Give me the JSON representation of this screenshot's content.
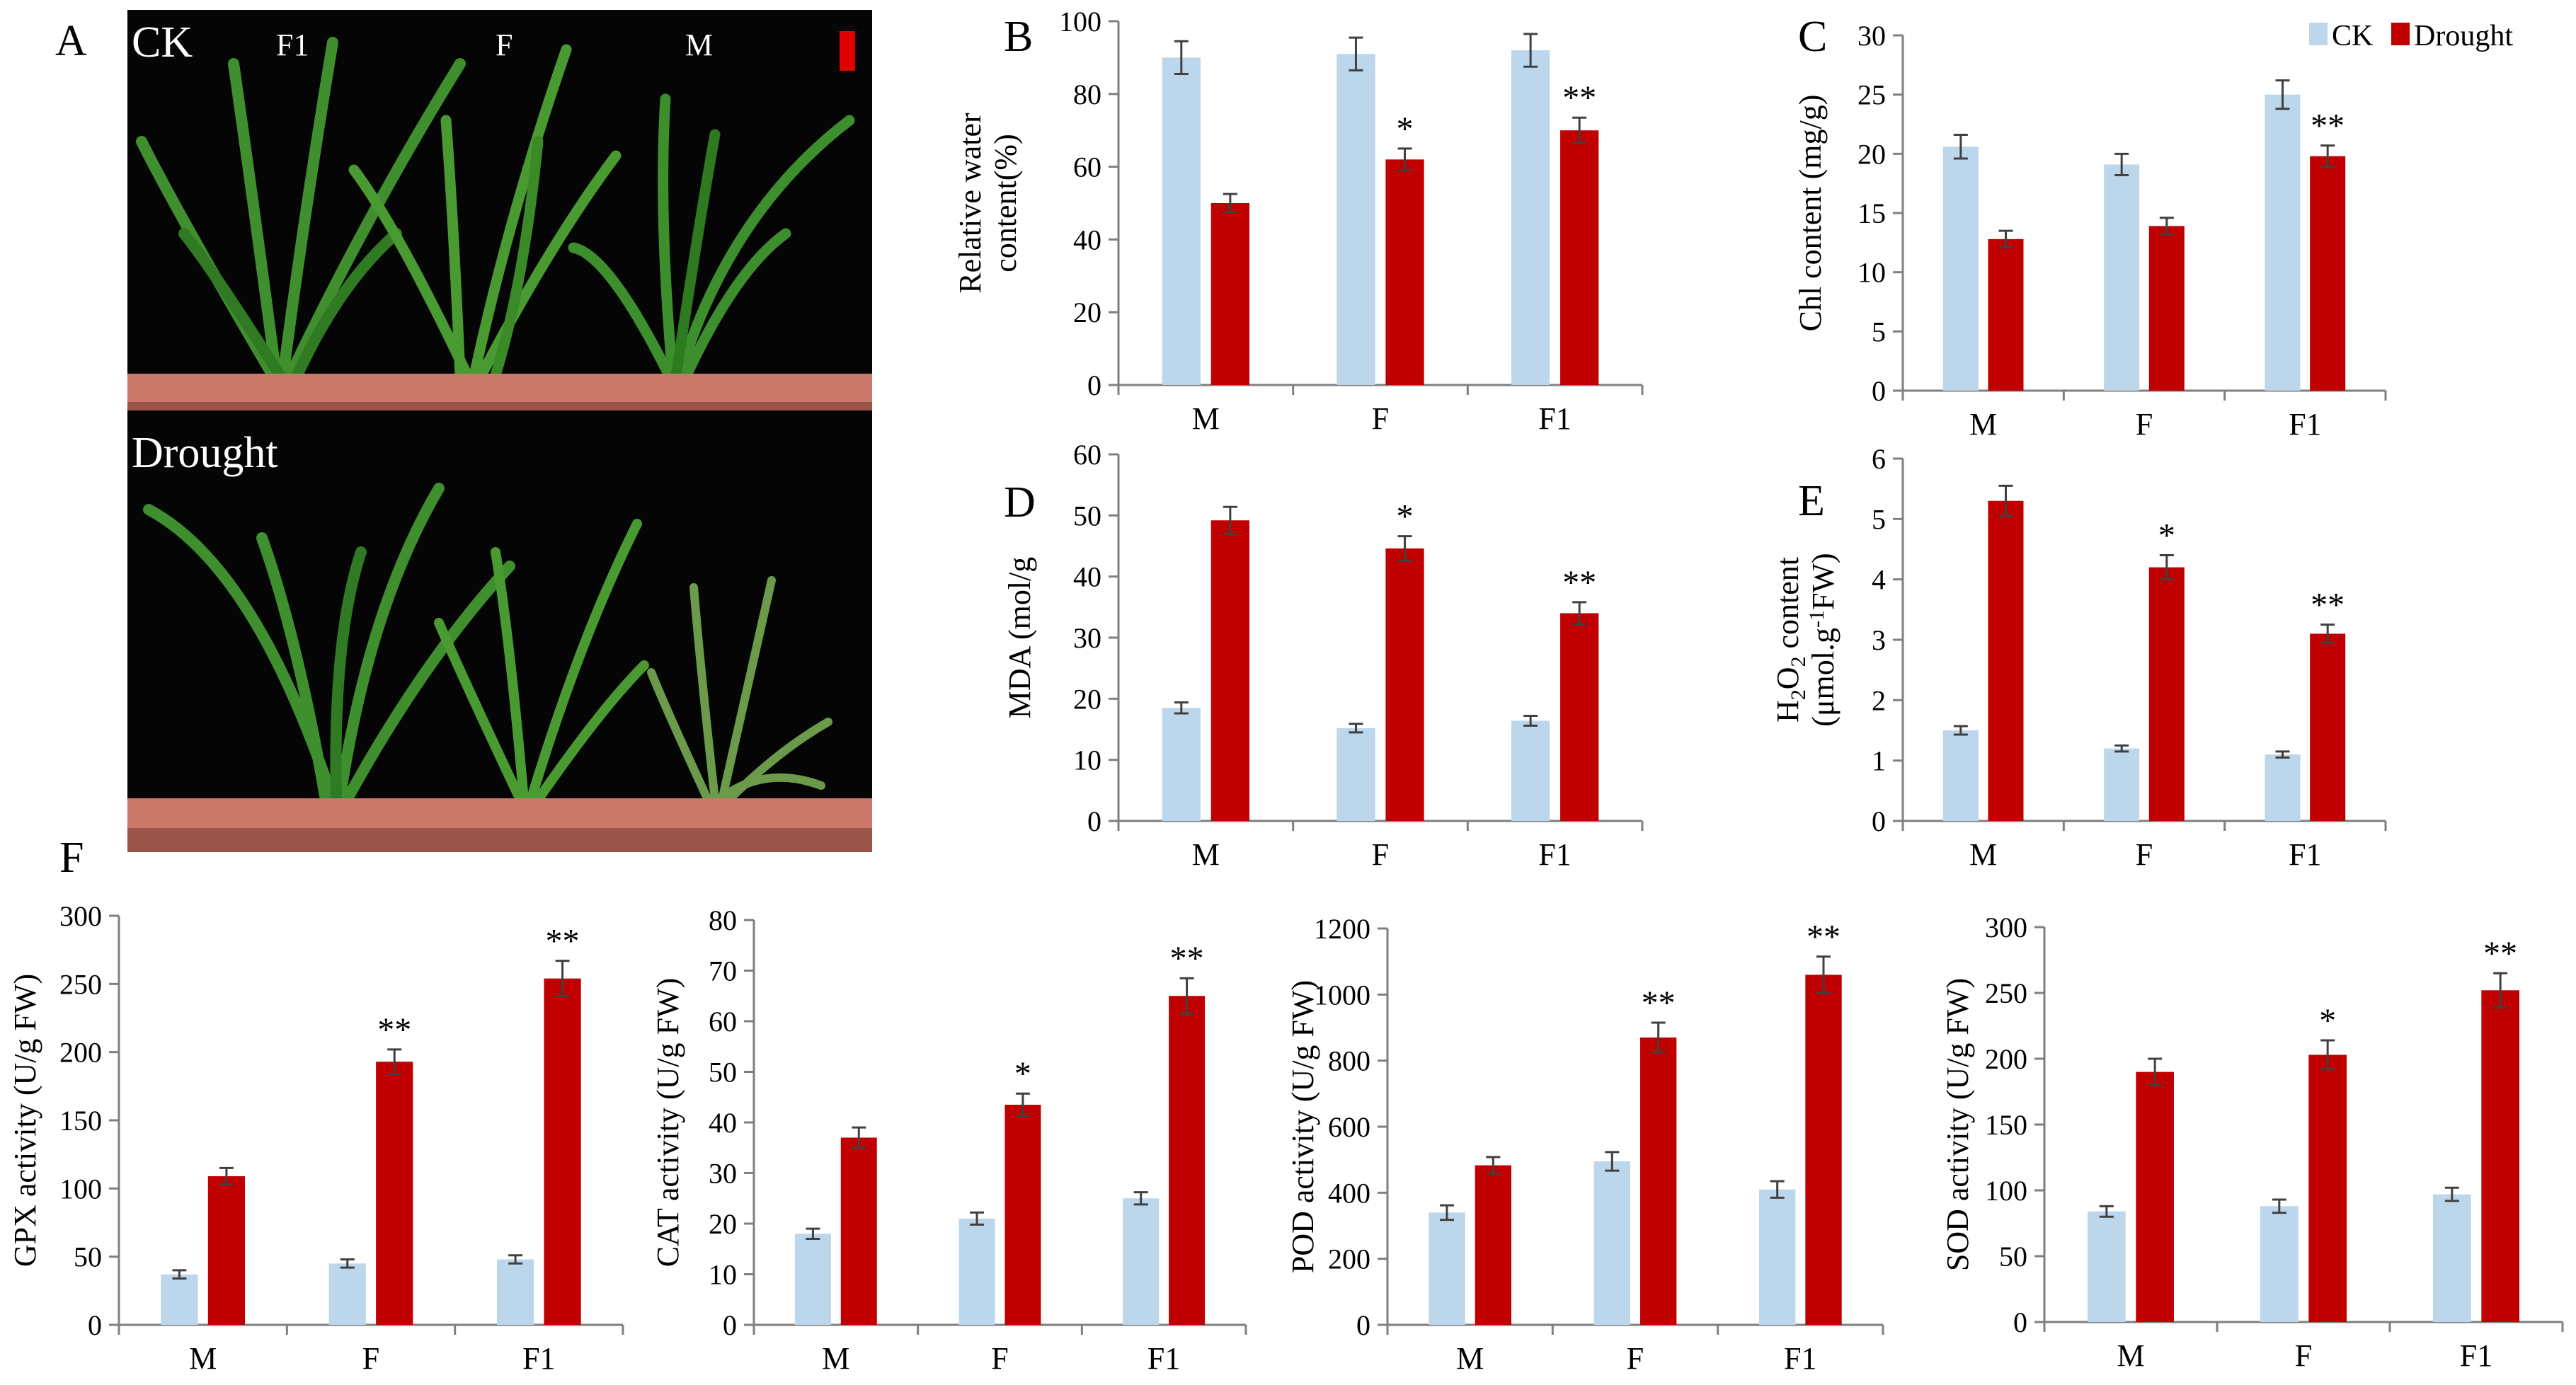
{
  "colors": {
    "ck": "#bcd6ec",
    "drought": "#c00000",
    "axis": "#7f7f7f",
    "errorbar": "#404040",
    "photo_background": "#050505",
    "planter": "#c9786a",
    "leaf": "#3f8f2e",
    "scale_bar": "#e00000"
  },
  "photo": {
    "letter": "A",
    "top": {
      "condition": "CK",
      "labels": [
        "F1",
        "F",
        "M"
      ]
    },
    "bottom": {
      "condition": "Drought"
    }
  },
  "legend": {
    "ck_label": "CK",
    "drought_label": "Drought"
  },
  "figure_label": "F",
  "chart_data": [
    {
      "letter": "B",
      "type": "bar",
      "ylabel": [
        "Relative water",
        "content(%)"
      ],
      "categories": [
        "M",
        "F",
        "F1"
      ],
      "ylim": [
        0,
        100
      ],
      "yticks": [
        0,
        20,
        40,
        60,
        80,
        100
      ],
      "series": [
        {
          "name": "CK",
          "values": [
            90,
            91,
            92
          ],
          "errors": [
            4.5,
            4.5,
            4.5
          ]
        },
        {
          "name": "Drought",
          "values": [
            50,
            62,
            70
          ],
          "errors": [
            2.5,
            3,
            3.5
          ]
        }
      ],
      "significance": [
        "",
        "*",
        "**"
      ]
    },
    {
      "letter": "C",
      "type": "bar",
      "ylabel": [
        "Chl content (mg/g)"
      ],
      "categories": [
        "M",
        "F",
        "F1"
      ],
      "ylim": [
        0,
        30
      ],
      "yticks": [
        0,
        5,
        10,
        15,
        20,
        25,
        30
      ],
      "series": [
        {
          "name": "CK",
          "values": [
            20.6,
            19.1,
            25
          ],
          "errors": [
            1,
            0.9,
            1.2
          ]
        },
        {
          "name": "Drought",
          "values": [
            12.8,
            13.9,
            19.8
          ],
          "errors": [
            0.7,
            0.7,
            0.9
          ]
        }
      ],
      "significance": [
        "",
        "",
        "**"
      ]
    },
    {
      "letter": "D",
      "type": "bar",
      "ylabel": [
        "MDA (mol/g"
      ],
      "categories": [
        "M",
        "F",
        "F1"
      ],
      "ylim": [
        0,
        60
      ],
      "yticks": [
        0,
        10,
        20,
        30,
        40,
        50,
        60
      ],
      "series": [
        {
          "name": "CK",
          "values": [
            18.5,
            15.2,
            16.4
          ],
          "errors": [
            0.9,
            0.7,
            0.8
          ]
        },
        {
          "name": "Drought",
          "values": [
            49.2,
            44.6,
            34
          ],
          "errors": [
            2.2,
            2,
            1.8
          ]
        }
      ],
      "significance": [
        "",
        "*",
        "**"
      ]
    },
    {
      "letter": "E",
      "type": "bar",
      "ylabel_h2o2": {
        "h": "H",
        "sub1": "2",
        "o": "O",
        "sub2": "2",
        "rest": " content"
      },
      "ylabel_unit": {
        "pre": "(μmol.g",
        "sup": "-1",
        "post": "FW)"
      },
      "categories": [
        "M",
        "F",
        "F1"
      ],
      "ylim": [
        0,
        6
      ],
      "yticks": [
        0,
        1,
        2,
        3,
        4,
        5,
        6
      ],
      "series": [
        {
          "name": "CK",
          "values": [
            1.5,
            1.2,
            1.1
          ],
          "errors": [
            0.07,
            0.05,
            0.05
          ]
        },
        {
          "name": "Drought",
          "values": [
            5.3,
            4.2,
            3.1
          ],
          "errors": [
            0.25,
            0.2,
            0.15
          ]
        }
      ],
      "significance": [
        "",
        "*",
        "**"
      ]
    },
    {
      "type": "bar",
      "ylabel": [
        "GPX activity (U/g FW)"
      ],
      "categories": [
        "M",
        "F",
        "F1"
      ],
      "ylim": [
        0,
        300
      ],
      "yticks": [
        0,
        50,
        100,
        150,
        200,
        250,
        300
      ],
      "series": [
        {
          "name": "CK",
          "values": [
            37,
            45,
            48
          ],
          "errors": [
            3,
            3,
            3
          ]
        },
        {
          "name": "Drought",
          "values": [
            109,
            193,
            254
          ],
          "errors": [
            6,
            9,
            13
          ]
        }
      ],
      "significance": [
        "",
        "**",
        "**"
      ]
    },
    {
      "type": "bar",
      "ylabel": [
        "CAT activity (U/g FW)"
      ],
      "categories": [
        "M",
        "F",
        "F1"
      ],
      "ylim": [
        0,
        80
      ],
      "yticks": [
        0,
        10,
        20,
        30,
        40,
        50,
        60,
        70,
        80
      ],
      "series": [
        {
          "name": "CK",
          "values": [
            18,
            21,
            25
          ],
          "errors": [
            1,
            1.2,
            1.2
          ]
        },
        {
          "name": "Drought",
          "values": [
            37,
            43.5,
            65
          ],
          "errors": [
            2,
            2.2,
            3.5
          ]
        }
      ],
      "significance": [
        "",
        "*",
        "**"
      ]
    },
    {
      "type": "bar",
      "ylabel": [
        "POD activity (U/g FW)"
      ],
      "categories": [
        "M",
        "F",
        "F1"
      ],
      "ylim": [
        0,
        1200
      ],
      "yticks": [
        0,
        200,
        400,
        600,
        800,
        1000,
        1200
      ],
      "series": [
        {
          "name": "CK",
          "values": [
            340,
            495,
            410
          ],
          "errors": [
            22,
            28,
            25
          ]
        },
        {
          "name": "Drought",
          "values": [
            483,
            870,
            1060
          ],
          "errors": [
            25,
            45,
            55
          ]
        }
      ],
      "significance": [
        "",
        "**",
        "**"
      ]
    },
    {
      "type": "bar",
      "ylabel": [
        "SOD activity (U/g FW)"
      ],
      "categories": [
        "M",
        "F",
        "F1"
      ],
      "ylim": [
        0,
        300
      ],
      "yticks": [
        0,
        50,
        100,
        150,
        200,
        250,
        300
      ],
      "series": [
        {
          "name": "CK",
          "values": [
            84,
            88,
            97
          ],
          "errors": [
            4,
            5,
            5
          ]
        },
        {
          "name": "Drought",
          "values": [
            190,
            203,
            252
          ],
          "errors": [
            10,
            11,
            13
          ]
        }
      ],
      "significance": [
        "",
        "*",
        "**"
      ]
    }
  ]
}
